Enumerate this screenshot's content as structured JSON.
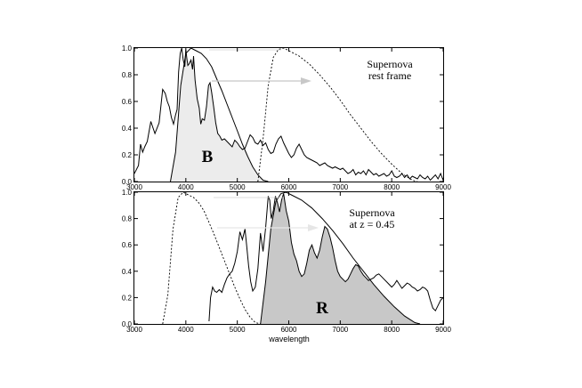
{
  "chart_data": [
    {
      "type": "line",
      "panel": "top",
      "annotation_lines": [
        "Supernova",
        "rest frame"
      ],
      "filter_label": "B",
      "xlim": [
        3000,
        9000
      ],
      "ylim": [
        0,
        1.0
      ],
      "xticks": [
        3000,
        4000,
        5000,
        6000,
        7000,
        8000,
        9000
      ],
      "yticks": [
        "0.0",
        "0.2",
        "0.4",
        "0.6",
        "0.8",
        "1.0"
      ],
      "series": [
        {
          "role": "spectrum",
          "style": "solid",
          "x": [
            3000,
            3080,
            3120,
            3160,
            3200,
            3250,
            3320,
            3400,
            3480,
            3550,
            3600,
            3640,
            3680,
            3720,
            3760,
            3800,
            3830,
            3860,
            3890,
            3920,
            3950,
            3980,
            4000,
            4020,
            4040,
            4060,
            4100,
            4130,
            4150,
            4180,
            4220,
            4260,
            4290,
            4320,
            4360,
            4400,
            4440,
            4470,
            4500,
            4540,
            4580,
            4620,
            4660,
            4700,
            4750,
            4800,
            4850,
            4900,
            4950,
            5000,
            5050,
            5100,
            5150,
            5200,
            5250,
            5300,
            5350,
            5400,
            5450,
            5500,
            5550,
            5600,
            5650,
            5700,
            5750,
            5800,
            5850,
            5900,
            5950,
            6000,
            6050,
            6100,
            6150,
            6200,
            6250,
            6300,
            6350,
            6400,
            6450,
            6500,
            6550,
            6600,
            6650,
            6700,
            6750,
            6800,
            6850,
            6900,
            6950,
            7000,
            7050,
            7100,
            7150,
            7200,
            7250,
            7300,
            7350,
            7400,
            7450,
            7500,
            7550,
            7600,
            7650,
            7700,
            7750,
            7800,
            7850,
            7900,
            7950,
            8000,
            8050,
            8100,
            8150,
            8200,
            8250,
            8300,
            8350,
            8400,
            8450,
            8500,
            8550,
            8600,
            8650,
            8700,
            8750,
            8800,
            8850,
            8900,
            8950,
            9000
          ],
          "y": [
            0.06,
            0.12,
            0.28,
            0.22,
            0.26,
            0.3,
            0.45,
            0.36,
            0.44,
            0.69,
            0.66,
            0.6,
            0.56,
            0.48,
            0.43,
            0.5,
            0.54,
            0.82,
            0.96,
            1.0,
            0.91,
            0.86,
            0.99,
            0.92,
            0.87,
            0.88,
            0.91,
            0.84,
            0.94,
            0.76,
            0.62,
            0.55,
            0.43,
            0.47,
            0.46,
            0.56,
            0.72,
            0.74,
            0.67,
            0.56,
            0.44,
            0.36,
            0.34,
            0.31,
            0.32,
            0.3,
            0.28,
            0.26,
            0.31,
            0.29,
            0.26,
            0.24,
            0.25,
            0.3,
            0.35,
            0.33,
            0.29,
            0.28,
            0.31,
            0.27,
            0.29,
            0.24,
            0.21,
            0.22,
            0.28,
            0.32,
            0.34,
            0.29,
            0.25,
            0.21,
            0.18,
            0.2,
            0.25,
            0.28,
            0.24,
            0.2,
            0.18,
            0.17,
            0.16,
            0.15,
            0.14,
            0.12,
            0.13,
            0.14,
            0.12,
            0.11,
            0.1,
            0.11,
            0.1,
            0.09,
            0.1,
            0.08,
            0.06,
            0.07,
            0.09,
            0.05,
            0.07,
            0.06,
            0.08,
            0.05,
            0.09,
            0.07,
            0.05,
            0.06,
            0.04,
            0.05,
            0.06,
            0.04,
            0.05,
            0.08,
            0.04,
            0.03,
            0.04,
            0.06,
            0.03,
            0.05,
            0.02,
            0.04,
            0.03,
            0.02,
            0.05,
            0.03,
            0.02,
            0.04,
            0.01,
            0.03,
            0.05,
            0.02,
            0.06,
            0.01
          ]
        },
        {
          "role": "filter",
          "style": "dotted",
          "x": [
            3700,
            3800,
            3900,
            4000,
            4100,
            4200,
            4300,
            4400,
            4500,
            4600,
            4700,
            4800,
            4900,
            5000,
            5100,
            5200,
            5300,
            5400,
            5500,
            5600
          ],
          "y": [
            0.0,
            0.22,
            0.72,
            0.96,
            1.0,
            0.98,
            0.96,
            0.92,
            0.86,
            0.77,
            0.68,
            0.58,
            0.48,
            0.38,
            0.28,
            0.19,
            0.11,
            0.05,
            0.01,
            0.0
          ]
        },
        {
          "role": "redshifted filter",
          "style": "dotted",
          "x": [
            5400,
            5500,
            5600,
            5700,
            5800,
            5900,
            6000,
            6200,
            6400,
            6600,
            6800,
            7000,
            7200,
            7400,
            7600,
            7800,
            8000,
            8200,
            8400,
            8500
          ],
          "y": [
            0.0,
            0.32,
            0.72,
            0.93,
            0.99,
            1.0,
            0.98,
            0.94,
            0.88,
            0.8,
            0.71,
            0.61,
            0.5,
            0.4,
            0.3,
            0.21,
            0.13,
            0.06,
            0.01,
            0.0
          ]
        }
      ]
    },
    {
      "type": "line",
      "panel": "bottom",
      "annotation_lines": [
        "Supernova",
        "at z = 0.45"
      ],
      "filter_label": "R",
      "xlabel": "wavelength",
      "xlim": [
        3000,
        9000
      ],
      "ylim": [
        0,
        1.0
      ],
      "xticks": [
        3000,
        4000,
        5000,
        6000,
        7000,
        8000,
        9000
      ],
      "yticks": [
        "0.0",
        "0.2",
        "0.4",
        "0.6",
        "0.8",
        "1.0"
      ],
      "series": [
        {
          "role": "spectrum",
          "style": "solid",
          "x": [
            4450,
            4480,
            4520,
            4560,
            4600,
            4650,
            4700,
            4750,
            4800,
            4850,
            4900,
            4950,
            5000,
            5050,
            5100,
            5130,
            5150,
            5180,
            5220,
            5260,
            5300,
            5350,
            5400,
            5450,
            5500,
            5550,
            5600,
            5630,
            5660,
            5700,
            5740,
            5780,
            5820,
            5860,
            5900,
            5950,
            6000,
            6050,
            6100,
            6150,
            6200,
            6250,
            6300,
            6350,
            6400,
            6450,
            6500,
            6550,
            6600,
            6650,
            6700,
            6750,
            6800,
            6850,
            6900,
            6950,
            7000,
            7050,
            7100,
            7150,
            7200,
            7250,
            7300,
            7350,
            7400,
            7450,
            7500,
            7550,
            7600,
            7650,
            7700,
            7750,
            7800,
            7850,
            7900,
            7950,
            8000,
            8050,
            8100,
            8150,
            8200,
            8250,
            8300,
            8350,
            8400,
            8450,
            8500,
            8550,
            8600,
            8650,
            8700,
            8750,
            8800,
            8850,
            8900,
            8950,
            9000
          ],
          "y": [
            0.02,
            0.2,
            0.28,
            0.25,
            0.24,
            0.26,
            0.24,
            0.3,
            0.35,
            0.38,
            0.4,
            0.46,
            0.55,
            0.7,
            0.64,
            0.69,
            0.72,
            0.6,
            0.44,
            0.32,
            0.25,
            0.28,
            0.42,
            0.69,
            0.55,
            0.73,
            0.97,
            0.94,
            0.8,
            0.86,
            0.97,
            0.92,
            0.85,
            0.94,
            0.99,
            0.86,
            0.78,
            0.62,
            0.53,
            0.48,
            0.4,
            0.36,
            0.38,
            0.46,
            0.56,
            0.6,
            0.54,
            0.5,
            0.56,
            0.66,
            0.74,
            0.72,
            0.66,
            0.58,
            0.48,
            0.4,
            0.36,
            0.34,
            0.32,
            0.34,
            0.38,
            0.42,
            0.45,
            0.44,
            0.4,
            0.37,
            0.35,
            0.33,
            0.34,
            0.35,
            0.37,
            0.38,
            0.36,
            0.34,
            0.32,
            0.3,
            0.28,
            0.3,
            0.33,
            0.3,
            0.27,
            0.29,
            0.31,
            0.3,
            0.28,
            0.27,
            0.25,
            0.26,
            0.28,
            0.27,
            0.25,
            0.18,
            0.12,
            0.1,
            0.14,
            0.18,
            0.2
          ]
        },
        {
          "role": "rest-frame filter",
          "style": "dotted",
          "x": [
            3550,
            3650,
            3750,
            3850,
            3950,
            4050,
            4150,
            4250,
            4350,
            4450,
            4550,
            4650,
            4750,
            4850,
            4950,
            5050,
            5150,
            5250,
            5350,
            5450
          ],
          "y": [
            0.0,
            0.22,
            0.72,
            0.96,
            1.0,
            0.98,
            0.96,
            0.92,
            0.86,
            0.77,
            0.68,
            0.58,
            0.48,
            0.38,
            0.28,
            0.19,
            0.11,
            0.05,
            0.01,
            0.0
          ]
        },
        {
          "role": "filter",
          "style": "solid",
          "x": [
            5450,
            5550,
            5650,
            5750,
            5850,
            5950,
            6050,
            6250,
            6450,
            6650,
            6850,
            7050,
            7250,
            7450,
            7650,
            7850,
            8050,
            8250,
            8450,
            8550
          ],
          "y": [
            0.0,
            0.32,
            0.72,
            0.93,
            0.99,
            1.0,
            0.98,
            0.94,
            0.88,
            0.8,
            0.71,
            0.61,
            0.5,
            0.4,
            0.3,
            0.21,
            0.13,
            0.06,
            0.01,
            0.0
          ]
        }
      ]
    }
  ]
}
